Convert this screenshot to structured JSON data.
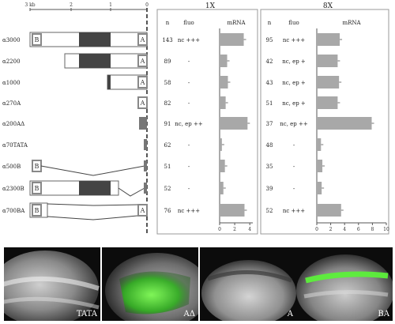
{
  "scale": {
    "ticks": [
      "3 kb",
      "2",
      "1",
      "0"
    ]
  },
  "constructs": [
    {
      "name": "α3000",
      "has_b": true,
      "has_a": true,
      "n1x": "143",
      "fluo1x": "nc +++",
      "mrna1x": 3.2,
      "n8x": "95",
      "fluo8x": "nc +++",
      "mrna8x": 3.3
    },
    {
      "name": "α2200",
      "has_b": false,
      "has_a": true,
      "n1x": "89",
      "fluo1x": "-",
      "mrna1x": 1.0,
      "n8x": "42",
      "fluo8x": "nc, ep +",
      "mrna8x": 3.0
    },
    {
      "name": "α1000",
      "has_b": false,
      "has_a": true,
      "n1x": "58",
      "fluo1x": "-",
      "mrna1x": 1.1,
      "n8x": "43",
      "fluo8x": "nc, ep +",
      "mrna8x": 3.2
    },
    {
      "name": "α270A",
      "has_b": false,
      "has_a": true,
      "n1x": "82",
      "fluo1x": "-",
      "mrna1x": 0.8,
      "n8x": "51",
      "fluo8x": "nc, ep +",
      "mrna8x": 3.0
    },
    {
      "name": "α200AΔ",
      "has_b": false,
      "has_a": false,
      "n1x": "91",
      "fluo1x": "nc, ep ++",
      "mrna1x": 3.7,
      "n8x": "37",
      "fluo8x": "nc, ep ++",
      "mrna8x": 7.9
    },
    {
      "name": "α70TATA",
      "has_b": false,
      "has_a": false,
      "n1x": "62",
      "fluo1x": "-",
      "mrna1x": 0.3,
      "n8x": "48",
      "fluo8x": "-",
      "mrna8x": 0.6
    },
    {
      "name": "α500B",
      "has_b": true,
      "has_a": false,
      "n1x": "51",
      "fluo1x": "-",
      "mrna1x": 0.7,
      "n8x": "35",
      "fluo8x": "-",
      "mrna8x": 0.8
    },
    {
      "name": "α2300B",
      "has_b": true,
      "has_a": false,
      "n1x": "52",
      "fluo1x": "-",
      "mrna1x": 0.5,
      "n8x": "39",
      "fluo8x": "-",
      "mrna8x": 0.7
    },
    {
      "name": "α700BA",
      "has_b": true,
      "has_a": true,
      "n1x": "76",
      "fluo1x": "nc +++",
      "mrna1x": 3.3,
      "n8x": "52",
      "fluo8x": "nc +++",
      "mrna8x": 3.5
    }
  ],
  "box_labels": {
    "a": "A",
    "b": "B"
  },
  "group1x": {
    "title": "1X",
    "headers": {
      "n": "n",
      "fluo": "fluo",
      "mrna": "mRNA"
    },
    "axis": {
      "ticks": [
        0,
        2,
        4
      ],
      "max": 4.4
    }
  },
  "group8x": {
    "title": "8X",
    "headers": {
      "n": "n",
      "fluo": "fluo",
      "mrna": "mRNA"
    },
    "axis": {
      "ticks": [
        0,
        2,
        4,
        6,
        8,
        10
      ],
      "max": 10
    }
  },
  "panels": [
    {
      "label": "TATA",
      "green": false
    },
    {
      "label": "AΔ",
      "green": true
    },
    {
      "label": "A",
      "green": false
    },
    {
      "label": "BA",
      "green": true
    }
  ],
  "colors": {
    "bar": "#a8a8a8",
    "region": "#444444",
    "box_border": "#888888",
    "green": "#3ec42a"
  }
}
